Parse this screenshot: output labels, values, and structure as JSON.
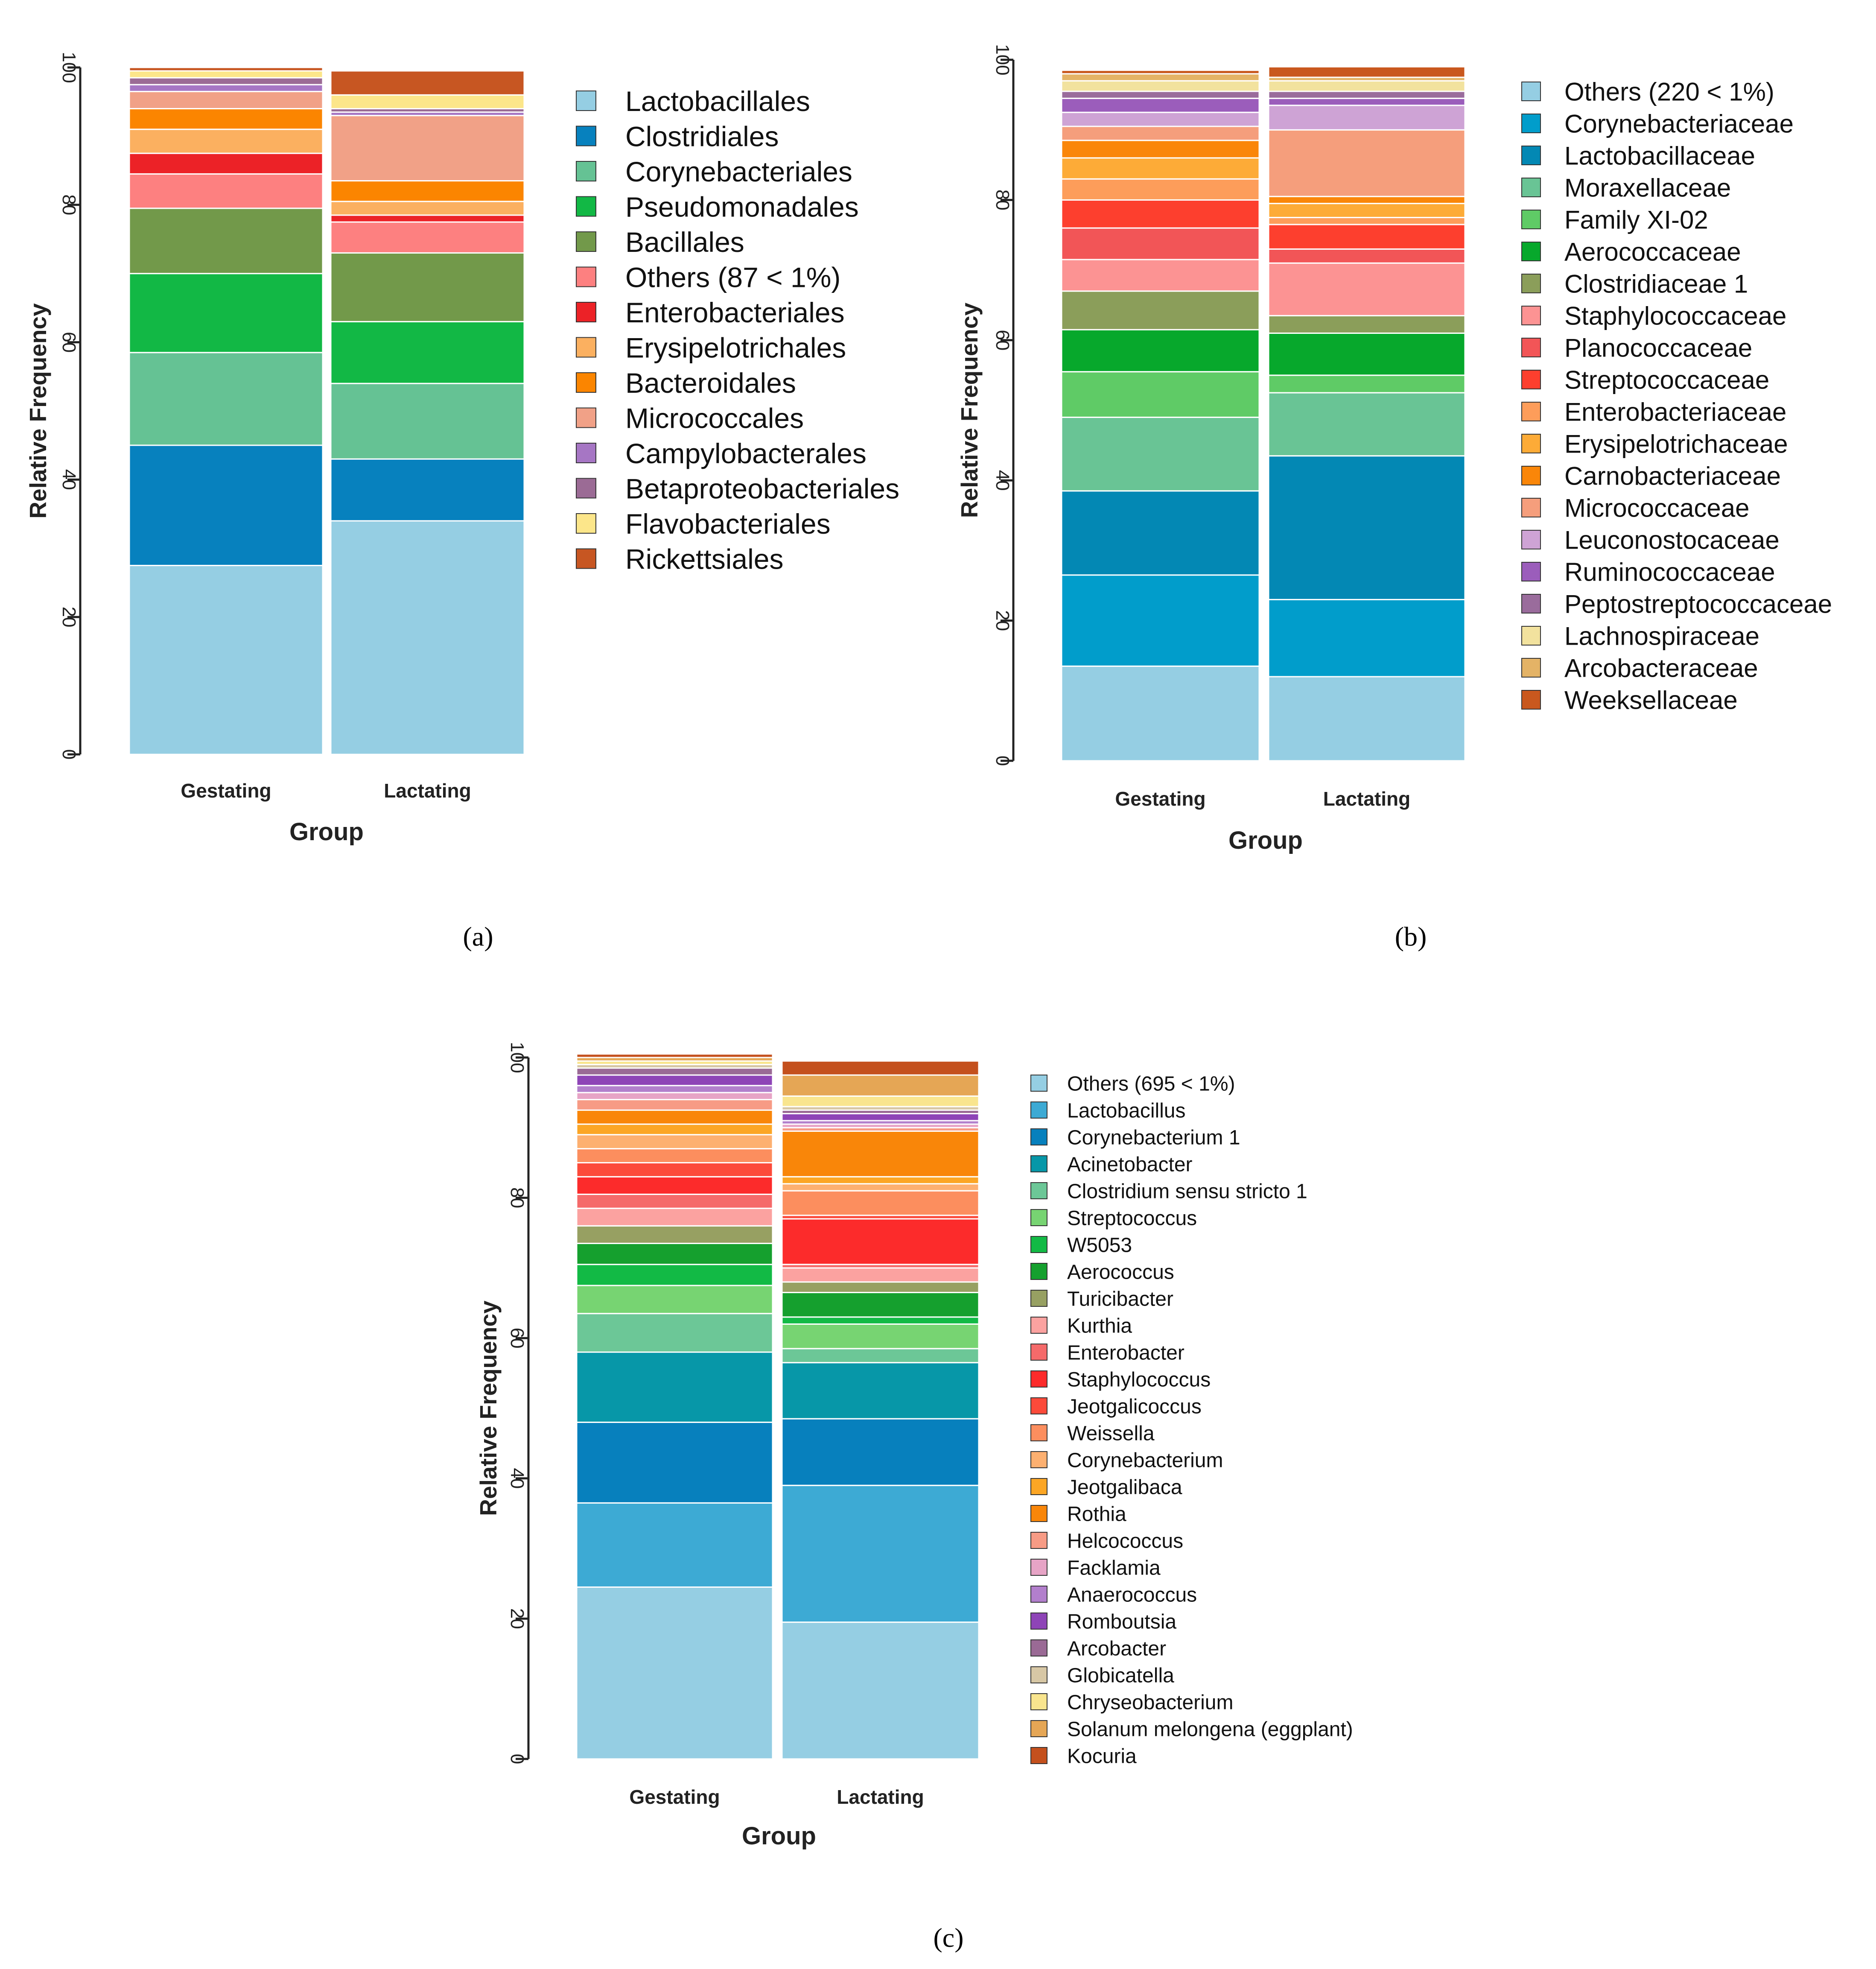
{
  "chart_data": [
    {
      "type": "bar",
      "stacked": true,
      "caption": "(a)",
      "xlabel": "Group",
      "ylabel": "Relative Frequency",
      "ylim": [
        0,
        100
      ],
      "yticks": [
        "0",
        "20",
        "40",
        "60",
        "80",
        "100"
      ],
      "categories": [
        "Gestating",
        "Lactating"
      ],
      "series": [
        {
          "name": "Lactobacillales",
          "color": "#95CEE3",
          "values": [
            27.5,
            34.0
          ]
        },
        {
          "name": "Clostridiales",
          "color": "#0781BE",
          "values": [
            17.5,
            9.0
          ]
        },
        {
          "name": "Corynebacteriales",
          "color": "#65C294",
          "values": [
            13.5,
            11.0
          ]
        },
        {
          "name": "Pseudomonadales",
          "color": "#12B845",
          "values": [
            11.5,
            9.0
          ]
        },
        {
          "name": "Bacillales",
          "color": "#72994A",
          "values": [
            9.5,
            10.0
          ]
        },
        {
          "name": "Others (87 < 1%)",
          "color": "#FD8080",
          "values": [
            5.0,
            4.5
          ]
        },
        {
          "name": "Enterobacteriales",
          "color": "#EC2227",
          "values": [
            3.0,
            1.0
          ]
        },
        {
          "name": "Erysipelotrichales",
          "color": "#FBB060",
          "values": [
            3.5,
            2.0
          ]
        },
        {
          "name": "Bacteroidales",
          "color": "#FB8500",
          "values": [
            3.0,
            3.0
          ]
        },
        {
          "name": "Micrococcales",
          "color": "#F1A187",
          "values": [
            2.5,
            9.5
          ]
        },
        {
          "name": "Campylobacterales",
          "color": "#A676C4",
          "values": [
            1.0,
            0.5
          ]
        },
        {
          "name": "Betaproteobacteriales",
          "color": "#9B6B95",
          "values": [
            1.0,
            0.5
          ]
        },
        {
          "name": "Flavobacteriales",
          "color": "#FCE68A",
          "values": [
            1.0,
            2.0
          ]
        },
        {
          "name": "Rickettsiales",
          "color": "#C75622",
          "values": [
            0.5,
            3.5
          ]
        }
      ]
    },
    {
      "type": "bar",
      "stacked": true,
      "caption": "(b)",
      "xlabel": "Group",
      "ylabel": "Relative Frequency",
      "ylim": [
        0,
        100
      ],
      "yticks": [
        "0",
        "20",
        "40",
        "60",
        "80",
        "100"
      ],
      "categories": [
        "Gestating",
        "Lactating"
      ],
      "series": [
        {
          "name": "Others (220 < 1%)",
          "color": "#95CEE3",
          "values": [
            13.5,
            12.0
          ]
        },
        {
          "name": "Corynebacteriaceae",
          "color": "#019DCB",
          "values": [
            13.0,
            11.0
          ]
        },
        {
          "name": "Lactobacillaceae",
          "color": "#0388B4",
          "values": [
            12.0,
            20.5
          ]
        },
        {
          "name": "Moraxellaceae",
          "color": "#69C495",
          "values": [
            10.5,
            9.0
          ]
        },
        {
          "name": "Family XI-02",
          "color": "#5FCB66",
          "values": [
            6.5,
            2.5
          ]
        },
        {
          "name": "Aerococcaceae",
          "color": "#07A82C",
          "values": [
            6.0,
            6.0
          ]
        },
        {
          "name": "Clostridiaceae 1",
          "color": "#8B9E5A",
          "values": [
            5.5,
            2.5
          ]
        },
        {
          "name": "Staphylococcaceae",
          "color": "#FC9393",
          "values": [
            4.5,
            7.5
          ]
        },
        {
          "name": "Planococcaceae",
          "color": "#F25557",
          "values": [
            4.5,
            2.0
          ]
        },
        {
          "name": "Streptococcaceae",
          "color": "#FD3F2E",
          "values": [
            4.0,
            3.5
          ]
        },
        {
          "name": "Enterobacteriaceae",
          "color": "#FD9D5A",
          "values": [
            3.0,
            1.0
          ]
        },
        {
          "name": "Erysipelotrichaceae",
          "color": "#FDAB37",
          "values": [
            3.0,
            2.0
          ]
        },
        {
          "name": "Carnobacteriaceae",
          "color": "#FA8609",
          "values": [
            2.5,
            1.0
          ]
        },
        {
          "name": "Micrococcaceae",
          "color": "#F59E7C",
          "values": [
            2.0,
            9.5
          ]
        },
        {
          "name": "Leuconostocaceae",
          "color": "#CEA3D5",
          "values": [
            2.0,
            3.5
          ]
        },
        {
          "name": "Ruminococcaceae",
          "color": "#9B5DBB",
          "values": [
            2.0,
            1.0
          ]
        },
        {
          "name": "Peptostreptococcaceae",
          "color": "#9A6C9C",
          "values": [
            1.0,
            1.0
          ]
        },
        {
          "name": "Lachnospiraceae",
          "color": "#F2E29E",
          "values": [
            1.5,
            1.5
          ]
        },
        {
          "name": "Arcobacteraceae",
          "color": "#E4B366",
          "values": [
            1.0,
            0.5
          ]
        },
        {
          "name": "Weeksellaceae",
          "color": "#C9581E",
          "values": [
            0.5,
            1.5
          ]
        }
      ]
    },
    {
      "type": "bar",
      "stacked": true,
      "caption": "(c)",
      "xlabel": "Group",
      "ylabel": "Relative Frequency",
      "ylim": [
        0,
        100
      ],
      "yticks": [
        "0",
        "20",
        "40",
        "60",
        "80",
        "100"
      ],
      "categories": [
        "Gestating",
        "Lactating"
      ],
      "series": [
        {
          "name": "Others (695 < 1%)",
          "color": "#95CEE3",
          "values": [
            24.5,
            19.5
          ]
        },
        {
          "name": "Lactobacillus",
          "color": "#3DAAD4",
          "values": [
            12.0,
            19.5
          ]
        },
        {
          "name": "Corynebacterium 1",
          "color": "#0780BD",
          "values": [
            11.5,
            9.5
          ]
        },
        {
          "name": "Acinetobacter",
          "color": "#0797A8",
          "values": [
            10.0,
            8.0
          ]
        },
        {
          "name": "Clostridium sensu stricto 1",
          "color": "#6CC797",
          "values": [
            5.5,
            2.0
          ]
        },
        {
          "name": "Streptococcus",
          "color": "#77D472",
          "values": [
            4.0,
            3.5
          ]
        },
        {
          "name": "W5053",
          "color": "#12BA45",
          "values": [
            3.0,
            1.0
          ]
        },
        {
          "name": "Aerococcus",
          "color": "#15A02E",
          "values": [
            3.0,
            3.5
          ]
        },
        {
          "name": "Turicibacter",
          "color": "#97A062",
          "values": [
            2.5,
            1.5
          ]
        },
        {
          "name": "Kurthia",
          "color": "#FBA2A0",
          "values": [
            2.5,
            2.0
          ]
        },
        {
          "name": "Enterobacter",
          "color": "#F56A6A",
          "values": [
            2.0,
            0.5
          ]
        },
        {
          "name": "Staphylococcus",
          "color": "#FC2B2B",
          "values": [
            2.5,
            6.5
          ]
        },
        {
          "name": "Jeotgalicoccus",
          "color": "#FC4A3A",
          "values": [
            2.0,
            0.5
          ]
        },
        {
          "name": "Weissella",
          "color": "#FC8E5E",
          "values": [
            2.0,
            3.5
          ]
        },
        {
          "name": "Corynebacterium",
          "color": "#FDB070",
          "values": [
            2.0,
            1.0
          ]
        },
        {
          "name": "Jeotgalibaca",
          "color": "#FCA625",
          "values": [
            1.5,
            1.0
          ]
        },
        {
          "name": "Rothia",
          "color": "#F98609",
          "values": [
            2.0,
            6.5
          ]
        },
        {
          "name": "Helcococcus",
          "color": "#F79B85",
          "values": [
            1.5,
            0.5
          ]
        },
        {
          "name": "Facklamia",
          "color": "#E7A4C6",
          "values": [
            1.0,
            0.5
          ]
        },
        {
          "name": "Anaerococcus",
          "color": "#B27FCC",
          "values": [
            1.0,
            0.5
          ]
        },
        {
          "name": "Romboutsia",
          "color": "#8E44B7",
          "values": [
            1.5,
            1.0
          ]
        },
        {
          "name": "Arcobacter",
          "color": "#9A6A95",
          "values": [
            1.0,
            0.5
          ]
        },
        {
          "name": "Globicatella",
          "color": "#D7C7A5",
          "values": [
            0.5,
            0.5
          ]
        },
        {
          "name": "Chryseobacterium",
          "color": "#F9E58E",
          "values": [
            0.5,
            1.5
          ]
        },
        {
          "name": "Solanum melongena (eggplant)",
          "color": "#E5A655",
          "values": [
            0.5,
            3.0
          ]
        },
        {
          "name": "Kocuria",
          "color": "#C4501D",
          "values": [
            0.5,
            2.0
          ]
        }
      ]
    }
  ]
}
